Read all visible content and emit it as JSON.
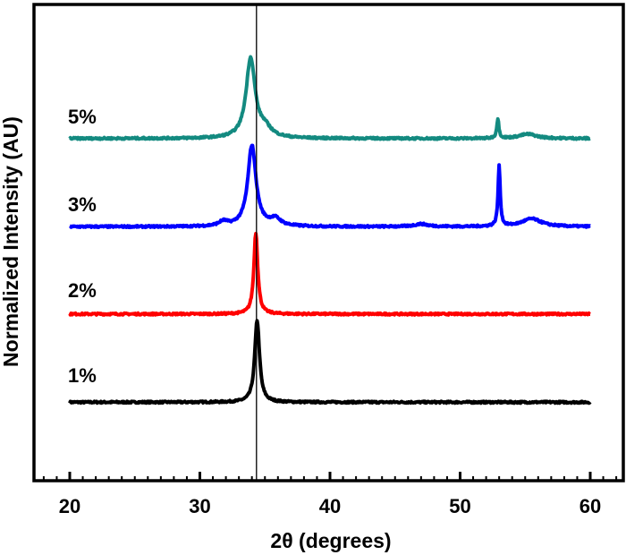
{
  "chart_data": {
    "type": "line",
    "xlabel": "2θ (degrees)",
    "ylabel": "Normalized Intensity (AU)",
    "xlim": [
      18,
      63
    ],
    "ylim": [
      0,
      5.4
    ],
    "x_ticks": [
      20,
      30,
      40,
      50,
      60
    ],
    "x_minor_tick_step": 1,
    "y_ticks": [],
    "grid": false,
    "legend": "none",
    "reference_line_x": 34.35,
    "series": [
      {
        "name": "1%",
        "color": "#000000",
        "baseline": 0.89,
        "x_range": [
          20,
          60
        ],
        "peaks": [
          [
            34.4,
            0.93,
            0.22
          ]
        ]
      },
      {
        "name": "2%",
        "color": "#ff0000",
        "baseline": 1.89,
        "x_range": [
          20,
          60
        ],
        "peaks": [
          [
            34.3,
            0.92,
            0.18
          ]
        ]
      },
      {
        "name": "3%",
        "color": "#0000ff",
        "baseline": 2.88,
        "x_range": [
          20,
          60
        ],
        "peaks": [
          [
            34.0,
            0.92,
            0.38
          ],
          [
            35.8,
            0.08,
            0.5
          ],
          [
            31.8,
            0.05,
            0.4
          ],
          [
            47.0,
            0.03,
            0.6
          ],
          [
            53.0,
            0.68,
            0.1
          ],
          [
            55.5,
            0.09,
            0.9
          ]
        ]
      },
      {
        "name": "5%",
        "color": "#138a80",
        "baseline": 3.88,
        "x_range": [
          20,
          60
        ],
        "peaks": [
          [
            33.9,
            0.9,
            0.42
          ],
          [
            35.0,
            0.1,
            0.6
          ],
          [
            52.9,
            0.22,
            0.1
          ],
          [
            55.2,
            0.05,
            0.8
          ]
        ]
      }
    ]
  }
}
